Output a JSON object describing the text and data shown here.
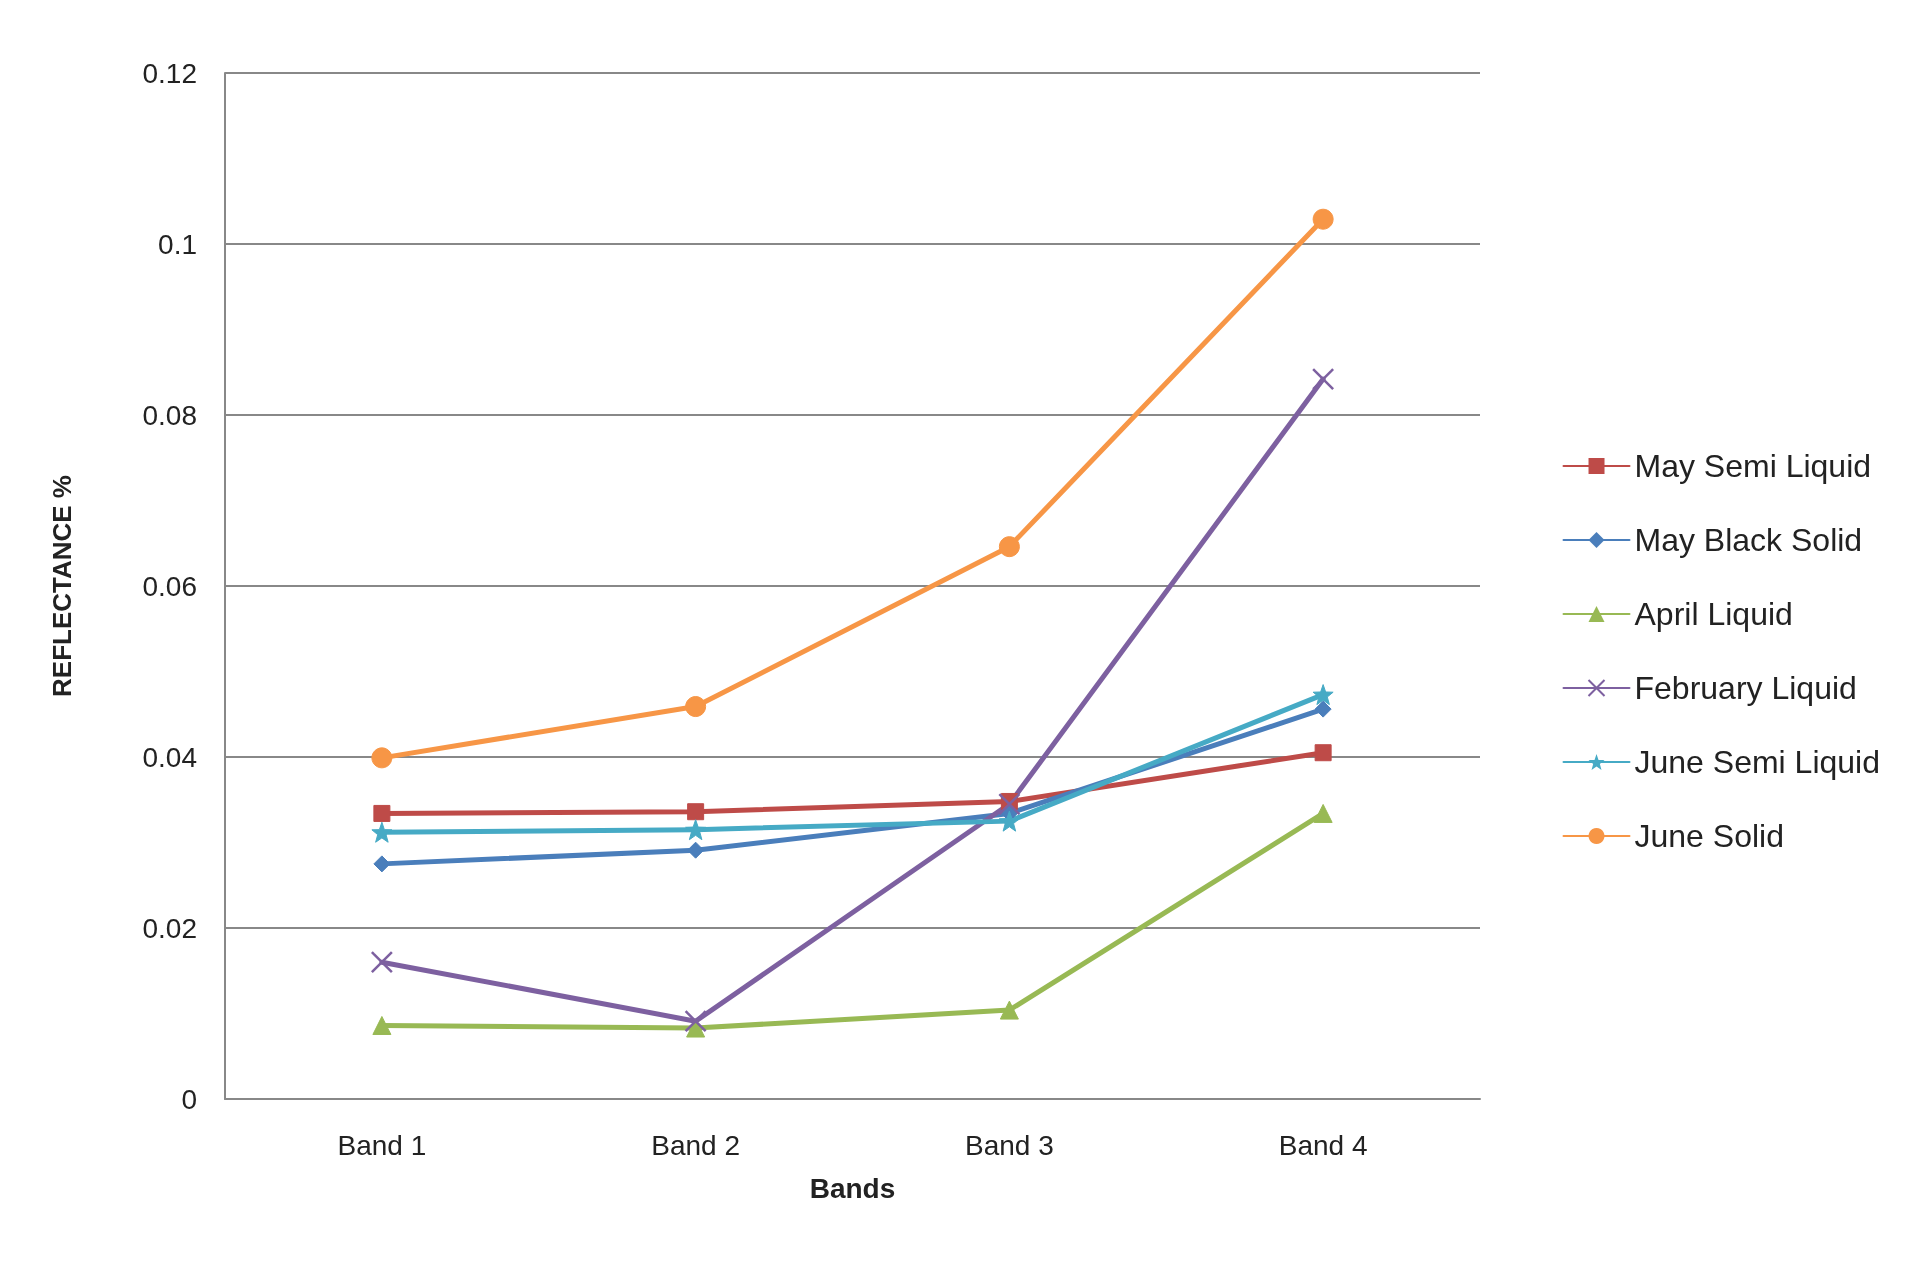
{
  "chart_data": {
    "type": "line",
    "xlabel": "Bands",
    "ylabel": "REFLECTANCE %",
    "categories": [
      "Band 1",
      "Band 2",
      "Band 3",
      "Band 4"
    ],
    "ylim": [
      0,
      0.12
    ],
    "yticks": [
      0,
      0.02,
      0.04,
      0.06,
      0.08,
      0.1,
      0.12
    ],
    "grid": "y",
    "legend": "right",
    "line_style": "solid",
    "series": [
      {
        "name": "May Semi Liquid",
        "color": "#be4b48",
        "marker": "square",
        "values": [
          0.0334,
          0.0336,
          0.0348,
          0.0405
        ]
      },
      {
        "name": "May Black Solid",
        "color": "#4a7ebb",
        "marker": "diamond",
        "values": [
          0.0275,
          0.0291,
          0.0334,
          0.0456
        ]
      },
      {
        "name": "April Liquid",
        "color": "#98b954",
        "marker": "triangle",
        "values": [
          0.0086,
          0.0083,
          0.0104,
          0.0334
        ]
      },
      {
        "name": "February Liquid",
        "color": "#7d60a0",
        "marker": "cross",
        "values": [
          0.016,
          0.0091,
          0.0345,
          0.0842
        ]
      },
      {
        "name": "June Semi Liquid",
        "color": "#46aac5",
        "marker": "star",
        "values": [
          0.0312,
          0.0315,
          0.0325,
          0.0473
        ]
      },
      {
        "name": "June Solid",
        "color": "#f79646",
        "marker": "circle",
        "values": [
          0.0399,
          0.0459,
          0.0646,
          0.1029
        ]
      }
    ]
  }
}
